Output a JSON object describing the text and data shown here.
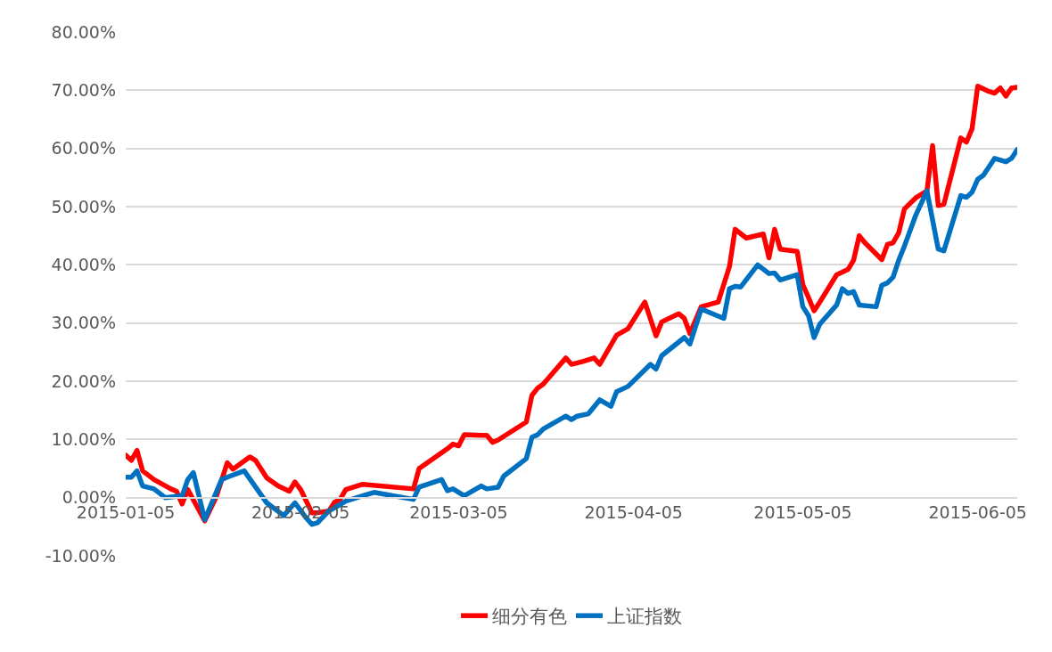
{
  "chart_data": {
    "type": "line",
    "series": [
      {
        "name": "细分有色",
        "color": "#ff0000",
        "x": [
          "2015-01-05",
          "2015-01-06",
          "2015-01-07",
          "2015-01-08",
          "2015-01-10",
          "2015-01-13",
          "2015-01-14",
          "2015-01-15",
          "2015-01-16",
          "2015-01-19",
          "2015-01-21",
          "2015-01-23",
          "2015-01-24",
          "2015-01-27",
          "2015-01-28",
          "2015-01-30",
          "2015-02-01",
          "2015-02-03",
          "2015-02-04",
          "2015-02-05",
          "2015-02-07",
          "2015-02-08",
          "2015-02-10",
          "2015-02-11",
          "2015-02-12",
          "2015-02-13",
          "2015-02-16",
          "2015-02-25",
          "2015-02-26",
          "2015-03-03",
          "2015-03-04",
          "2015-03-05",
          "2015-03-06",
          "2015-03-09",
          "2015-03-10",
          "2015-03-11",
          "2015-03-12",
          "2015-03-17",
          "2015-03-18",
          "2015-03-19",
          "2015-03-20",
          "2015-03-24",
          "2015-03-25",
          "2015-03-27",
          "2015-03-29",
          "2015-03-30",
          "2015-04-02",
          "2015-04-04",
          "2015-04-07",
          "2015-04-09",
          "2015-04-10",
          "2015-04-13",
          "2015-04-14",
          "2015-04-15",
          "2015-04-17",
          "2015-04-20",
          "2015-04-22",
          "2015-04-23",
          "2015-04-25",
          "2015-04-28",
          "2015-04-29",
          "2015-04-30",
          "2015-05-01",
          "2015-05-04",
          "2015-05-05",
          "2015-05-06",
          "2015-05-07",
          "2015-05-08",
          "2015-05-11",
          "2015-05-13",
          "2015-05-14",
          "2015-05-15",
          "2015-05-16",
          "2015-05-19",
          "2015-05-20",
          "2015-05-21",
          "2015-05-22",
          "2015-05-23",
          "2015-05-25",
          "2015-05-27",
          "2015-05-28",
          "2015-05-29",
          "2015-05-30",
          "2015-06-01",
          "2015-06-02",
          "2015-06-03",
          "2015-06-04",
          "2015-06-05",
          "2015-06-07",
          "2015-06-08",
          "2015-06-09",
          "2015-06-10",
          "2015-06-11",
          "2015-06-12"
        ],
        "values": [
          7.3,
          6.4,
          8.1,
          4.6,
          3.1,
          1.5,
          1.1,
          -1.1,
          1.4,
          -4.0,
          0.0,
          6.0,
          4.9,
          7.0,
          6.4,
          3.4,
          2.0,
          1.1,
          2.7,
          1.4,
          -2.6,
          -2.6,
          -2.3,
          -0.8,
          -0.3,
          1.4,
          2.3,
          1.5,
          5.0,
          8.4,
          9.2,
          8.9,
          10.8,
          10.7,
          10.7,
          9.5,
          9.9,
          13.0,
          17.6,
          18.8,
          19.5,
          24.0,
          22.9,
          23.4,
          24.0,
          22.9,
          27.9,
          29.0,
          33.6,
          27.8,
          30.2,
          31.6,
          30.8,
          28.2,
          32.8,
          33.6,
          39.7,
          46.1,
          44.6,
          45.3,
          41.2,
          46.1,
          42.7,
          42.3,
          36.6,
          34.4,
          32.1,
          33.6,
          38.3,
          39.2,
          40.8,
          45.0,
          43.8,
          40.9,
          43.5,
          43.8,
          45.5,
          49.6,
          51.5,
          52.7,
          60.5,
          50.2,
          50.4,
          58.0,
          61.8,
          61.1,
          63.4,
          70.7,
          69.8,
          69.5,
          70.4,
          69.0,
          70.4,
          70.5
        ]
      },
      {
        "name": "上证指数",
        "color": "#0070c0",
        "x": [
          "2015-01-05",
          "2015-01-06",
          "2015-01-07",
          "2015-01-08",
          "2015-01-10",
          "2015-01-12",
          "2015-01-14",
          "2015-01-15",
          "2015-01-16",
          "2015-01-17",
          "2015-01-19",
          "2015-01-22",
          "2015-01-23",
          "2015-01-26",
          "2015-01-30",
          "2015-02-02",
          "2015-02-04",
          "2015-02-06",
          "2015-02-07",
          "2015-02-08",
          "2015-02-10",
          "2015-02-12",
          "2015-02-13",
          "2015-02-16",
          "2015-02-18",
          "2015-02-25",
          "2015-02-26",
          "2015-03-02",
          "2015-03-03",
          "2015-03-04",
          "2015-03-06",
          "2015-03-09",
          "2015-03-10",
          "2015-03-12",
          "2015-03-13",
          "2015-03-17",
          "2015-03-18",
          "2015-03-19",
          "2015-03-20",
          "2015-03-24",
          "2015-03-25",
          "2015-03-26",
          "2015-03-28",
          "2015-03-30",
          "2015-04-01",
          "2015-04-02",
          "2015-04-04",
          "2015-04-08",
          "2015-04-09",
          "2015-04-10",
          "2015-04-14",
          "2015-04-15",
          "2015-04-17",
          "2015-04-21",
          "2015-04-22",
          "2015-04-23",
          "2015-04-24",
          "2015-04-27",
          "2015-04-29",
          "2015-04-30",
          "2015-05-01",
          "2015-05-04",
          "2015-05-05",
          "2015-05-06",
          "2015-05-07",
          "2015-05-08",
          "2015-05-11",
          "2015-05-12",
          "2015-05-13",
          "2015-05-14",
          "2015-05-15",
          "2015-05-18",
          "2015-05-19",
          "2015-05-20",
          "2015-05-21",
          "2015-05-22",
          "2015-05-23",
          "2015-05-25",
          "2015-05-27",
          "2015-05-29",
          "2015-05-30",
          "2015-06-02",
          "2015-06-03",
          "2015-06-04",
          "2015-06-05",
          "2015-06-06",
          "2015-06-08",
          "2015-06-10",
          "2015-06-11",
          "2015-06-12"
        ],
        "values": [
          3.5,
          3.5,
          4.6,
          2.0,
          1.5,
          0.0,
          0.2,
          0.3,
          3.1,
          4.3,
          -3.8,
          3.1,
          3.5,
          4.6,
          -0.9,
          -3.1,
          -0.9,
          -3.5,
          -4.6,
          -4.3,
          -2.3,
          -1.2,
          -0.6,
          0.3,
          0.9,
          -0.3,
          1.8,
          3.1,
          1.2,
          1.5,
          0.3,
          2.0,
          1.5,
          1.8,
          3.7,
          6.7,
          10.4,
          10.8,
          11.8,
          14.0,
          13.4,
          14.0,
          14.4,
          16.8,
          15.7,
          18.2,
          19.1,
          22.9,
          22.1,
          24.4,
          27.5,
          26.4,
          32.4,
          30.8,
          35.9,
          36.3,
          36.2,
          40.0,
          38.5,
          38.6,
          37.4,
          38.3,
          32.8,
          31.3,
          27.5,
          29.8,
          33.1,
          35.9,
          35.1,
          35.4,
          33.1,
          32.8,
          36.5,
          36.9,
          37.9,
          40.8,
          43.2,
          48.5,
          52.7,
          42.7,
          42.4,
          51.9,
          51.6,
          52.5,
          54.7,
          55.4,
          58.3,
          57.7,
          58.3,
          59.8
        ]
      }
    ],
    "xlim": [
      "2015-01-05",
      "2015-06-12"
    ],
    "xticks": [
      "2015-01-05",
      "2015-02-05",
      "2015-03-05",
      "2015-04-05",
      "2015-05-05",
      "2015-06-05"
    ],
    "ylim": [
      -10,
      80
    ],
    "yticks": [
      {
        "value": -10,
        "label": "-10.00%"
      },
      {
        "value": 0,
        "label": "0.00%"
      },
      {
        "value": 10,
        "label": "10.00%"
      },
      {
        "value": 20,
        "label": "20.00%"
      },
      {
        "value": 30,
        "label": "30.00%"
      },
      {
        "value": 40,
        "label": "40.00%"
      },
      {
        "value": 50,
        "label": "50.00%"
      },
      {
        "value": 60,
        "label": "60.00%"
      },
      {
        "value": 70,
        "label": "70.00%"
      },
      {
        "value": 80,
        "label": "80.00%"
      }
    ],
    "grid": "y",
    "legend": "bottom",
    "marker": "none",
    "line_style": "solid"
  }
}
